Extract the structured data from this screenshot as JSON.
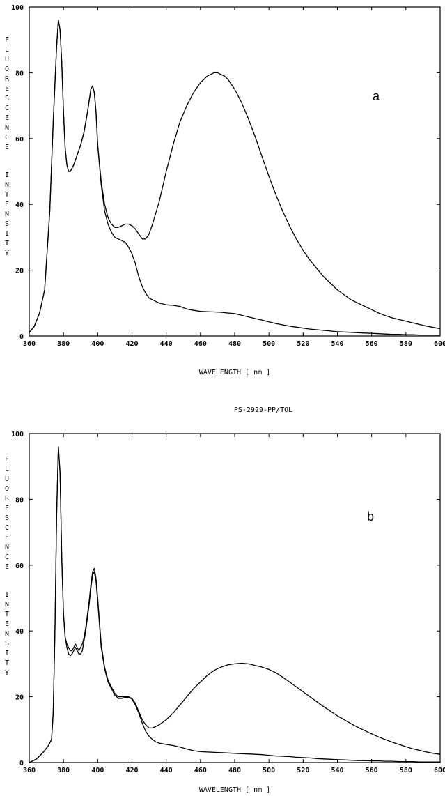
{
  "chart_data": [
    {
      "type": "line",
      "panel_label": "a",
      "xlabel": "WAVELENGTH [ nm ]",
      "ylabel": "FLUORESCENCE INTENSITY",
      "xlim": [
        360,
        600
      ],
      "ylim": [
        0,
        100
      ],
      "xticks": [
        "360",
        "380",
        "400",
        "420",
        "440",
        "460",
        "480",
        "500",
        "520",
        "540",
        "560",
        "580",
        "600"
      ],
      "yticks": [
        "0",
        "20",
        "40",
        "60",
        "80",
        "100"
      ],
      "grid": false,
      "series": [
        {
          "x": [
            360,
            363,
            366,
            369,
            372,
            374,
            376,
            377,
            378,
            379,
            380,
            381,
            382,
            383,
            384,
            386,
            388,
            390,
            392,
            394,
            396,
            397,
            398,
            399,
            400,
            402,
            404,
            406,
            408,
            410,
            412,
            414,
            416,
            418,
            420,
            422,
            424,
            426,
            428,
            430,
            432,
            436,
            440,
            444,
            448,
            452,
            456,
            460,
            464,
            468,
            470,
            472,
            474,
            476,
            478,
            480,
            484,
            488,
            492,
            496,
            500,
            504,
            508,
            512,
            516,
            520,
            524,
            528,
            532,
            536,
            540,
            544,
            548,
            552,
            556,
            560,
            564,
            568,
            572,
            576,
            580,
            584,
            588,
            592,
            596,
            600
          ],
          "y": [
            1,
            3,
            7,
            14,
            38,
            65,
            88,
            96,
            93,
            83,
            68,
            57,
            52,
            50,
            50,
            52,
            55,
            58,
            62,
            68,
            75,
            76,
            74,
            68,
            58,
            47,
            40,
            36,
            34,
            33,
            33,
            33.5,
            34,
            34,
            33.5,
            32.5,
            31,
            29.5,
            29.5,
            31,
            34,
            41,
            50,
            58,
            65,
            70,
            74,
            77,
            79,
            80,
            80,
            79.5,
            79,
            78,
            76.5,
            75,
            71,
            66,
            60.5,
            54.5,
            48.5,
            43,
            38,
            33.5,
            29.5,
            26,
            23,
            20.5,
            18,
            16,
            14,
            12.5,
            11,
            10,
            9,
            8,
            7,
            6.2,
            5.5,
            5,
            4.5,
            4,
            3.5,
            3,
            2.6,
            2.2
          ]
        },
        {
          "x": [
            360,
            363,
            366,
            369,
            372,
            374,
            376,
            377,
            378,
            379,
            380,
            381,
            382,
            383,
            384,
            386,
            388,
            390,
            392,
            394,
            396,
            397,
            398,
            399,
            400,
            402,
            404,
            406,
            408,
            410,
            412,
            414,
            416,
            418,
            420,
            422,
            424,
            426,
            428,
            430,
            432,
            436,
            440,
            444,
            448,
            452,
            456,
            460,
            464,
            468,
            472,
            476,
            480,
            484,
            488,
            492,
            496,
            500,
            504,
            508,
            512,
            516,
            520,
            524,
            528,
            532,
            536,
            540,
            544,
            548,
            552,
            556,
            560,
            564,
            568,
            572,
            576,
            580,
            584,
            588,
            592,
            596,
            600
          ],
          "y": [
            1,
            3,
            7,
            14,
            38,
            65,
            88,
            96,
            93,
            83,
            68,
            57,
            52,
            50,
            50,
            52,
            55,
            58,
            62,
            68,
            75,
            76,
            74,
            68,
            58,
            46,
            38,
            34,
            31.5,
            30,
            29.5,
            29,
            28.5,
            27,
            25,
            22,
            18,
            15,
            13,
            11.5,
            11,
            10,
            9.5,
            9.3,
            9,
            8.2,
            7.8,
            7.5,
            7.4,
            7.3,
            7.2,
            7,
            6.8,
            6.3,
            5.8,
            5.3,
            4.8,
            4.3,
            3.8,
            3.4,
            3,
            2.7,
            2.4,
            2.1,
            1.9,
            1.7,
            1.5,
            1.3,
            1.2,
            1.1,
            1,
            0.9,
            0.8,
            0.7,
            0.6,
            0.5,
            0.5,
            0.4,
            0.4,
            0.3,
            0.3,
            0.3,
            0.3
          ]
        }
      ]
    },
    {
      "type": "line",
      "panel_label": "b",
      "title": "PS-2929-PP/TOL",
      "xlabel": "WAVELENGTH [ nm ]",
      "ylabel": "FLUORESCENCE INTENSITY",
      "xlim": [
        360,
        600
      ],
      "ylim": [
        0,
        100
      ],
      "xticks": [
        "360",
        "380",
        "400",
        "420",
        "440",
        "460",
        "480",
        "500",
        "520",
        "540",
        "560",
        "580",
        "600"
      ],
      "yticks": [
        "0",
        "20",
        "40",
        "60",
        "80",
        "100"
      ],
      "grid": false,
      "series": [
        {
          "x": [
            360,
            364,
            368,
            371,
            373,
            374,
            375,
            376,
            377,
            378,
            379,
            380,
            381,
            382,
            383,
            384,
            385,
            386,
            387,
            388,
            389,
            390,
            391,
            392,
            393,
            394,
            395,
            396,
            397,
            398,
            399,
            400,
            401,
            402,
            404,
            406,
            408,
            410,
            412,
            414,
            416,
            418,
            420,
            422,
            424,
            426,
            428,
            430,
            432,
            434,
            436,
            440,
            444,
            448,
            452,
            456,
            460,
            464,
            468,
            472,
            476,
            480,
            484,
            488,
            492,
            496,
            500,
            504,
            508,
            512,
            516,
            520,
            524,
            528,
            532,
            536,
            540,
            544,
            548,
            552,
            556,
            560,
            564,
            568,
            572,
            576,
            580,
            584,
            588,
            592,
            596,
            600
          ],
          "y": [
            0,
            1,
            3,
            5,
            7,
            15,
            40,
            75,
            96,
            88,
            62,
            45,
            38,
            36,
            35,
            34,
            34,
            35,
            36,
            35,
            34,
            35,
            36,
            38,
            41,
            45,
            49,
            54,
            58,
            59,
            56,
            50,
            43,
            36,
            29,
            25,
            23,
            21,
            20,
            20,
            20,
            20,
            19.5,
            18,
            15.5,
            13,
            11.5,
            10.5,
            10.5,
            11,
            11.5,
            13,
            15,
            17.5,
            20,
            22.5,
            24.5,
            26.5,
            28,
            29,
            29.7,
            30,
            30.2,
            30,
            29.5,
            29,
            28.3,
            27.3,
            26,
            24.5,
            23,
            21.5,
            20,
            18.5,
            17,
            15.6,
            14.2,
            13,
            11.8,
            10.7,
            9.7,
            8.7,
            7.8,
            7,
            6.2,
            5.5,
            4.8,
            4.2,
            3.7,
            3.2,
            2.8,
            2.5
          ]
        },
        {
          "x": [
            360,
            364,
            368,
            371,
            373,
            374,
            375,
            376,
            377,
            378,
            379,
            380,
            381,
            382,
            383,
            384,
            385,
            386,
            387,
            388,
            389,
            390,
            391,
            392,
            393,
            394,
            395,
            396,
            397,
            398,
            399,
            400,
            401,
            402,
            404,
            406,
            408,
            410,
            412,
            414,
            416,
            418,
            420,
            422,
            424,
            426,
            428,
            430,
            432,
            434,
            436,
            440,
            444,
            448,
            452,
            456,
            460,
            464,
            468,
            472,
            476,
            480,
            484,
            488,
            492,
            496,
            500,
            504,
            508,
            512,
            516,
            520,
            524,
            528,
            532,
            536,
            540,
            544,
            548,
            552,
            556,
            560,
            564,
            568,
            572,
            576,
            580,
            584,
            588,
            592,
            596,
            600
          ],
          "y": [
            0,
            1,
            3,
            5,
            7,
            15,
            40,
            75,
            96,
            88,
            62,
            45,
            38,
            35,
            33,
            32.5,
            33,
            34,
            35,
            34,
            33,
            33,
            34,
            37,
            40,
            44,
            48,
            53,
            57,
            58,
            55,
            49,
            42,
            35,
            28.5,
            24.5,
            22.5,
            20.5,
            19.5,
            19.5,
            19.8,
            19.8,
            19.3,
            17.5,
            15,
            12,
            9.5,
            8,
            7,
            6.3,
            5.9,
            5.5,
            5.2,
            4.7,
            4.1,
            3.6,
            3.3,
            3.2,
            3.1,
            3.0,
            2.9,
            2.8,
            2.7,
            2.6,
            2.5,
            2.4,
            2.2,
            2.0,
            1.9,
            1.8,
            1.6,
            1.5,
            1.4,
            1.2,
            1.1,
            1.0,
            0.9,
            0.8,
            0.7,
            0.6,
            0.6,
            0.5,
            0.5,
            0.4,
            0.4,
            0.3,
            0.3,
            0.3,
            0.2,
            0.2,
            0.2,
            0.2
          ]
        }
      ]
    }
  ]
}
